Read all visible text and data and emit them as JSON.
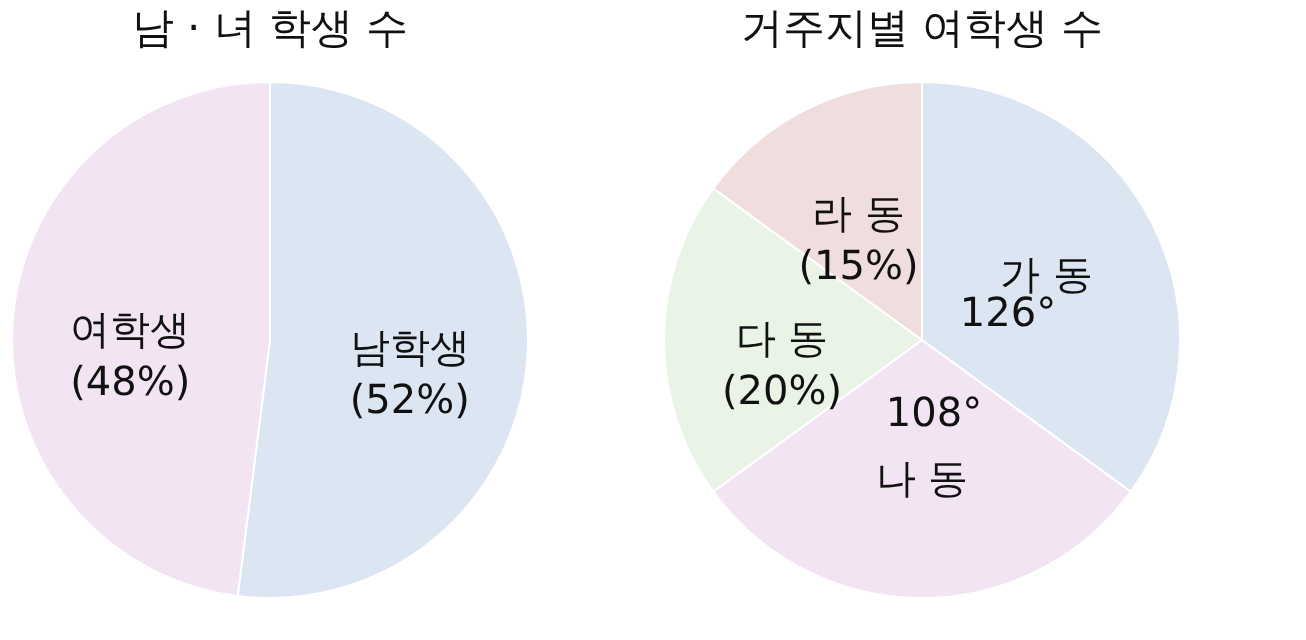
{
  "chart_data": [
    {
      "type": "pie",
      "title": "남 · 녀 학생 수",
      "categories": [
        "남학생",
        "여학생"
      ],
      "values": [
        52,
        48
      ],
      "colors": [
        "#dce6f3",
        "#f3e4f3"
      ],
      "value_labels": [
        "(52%)",
        "(48%)"
      ]
    },
    {
      "type": "pie",
      "title": "거주지별 여학생 수",
      "categories": [
        "가 동",
        "나 동",
        "다 동",
        "라 동"
      ],
      "values": [
        35,
        30,
        20,
        15
      ],
      "colors": [
        "#dce6f3",
        "#f3e4f3",
        "#e9f3e6",
        "#f0dede"
      ],
      "value_labels": [
        null,
        null,
        "(20%)",
        "(15%)"
      ],
      "annotations": [
        "126°",
        "108°"
      ]
    }
  ]
}
